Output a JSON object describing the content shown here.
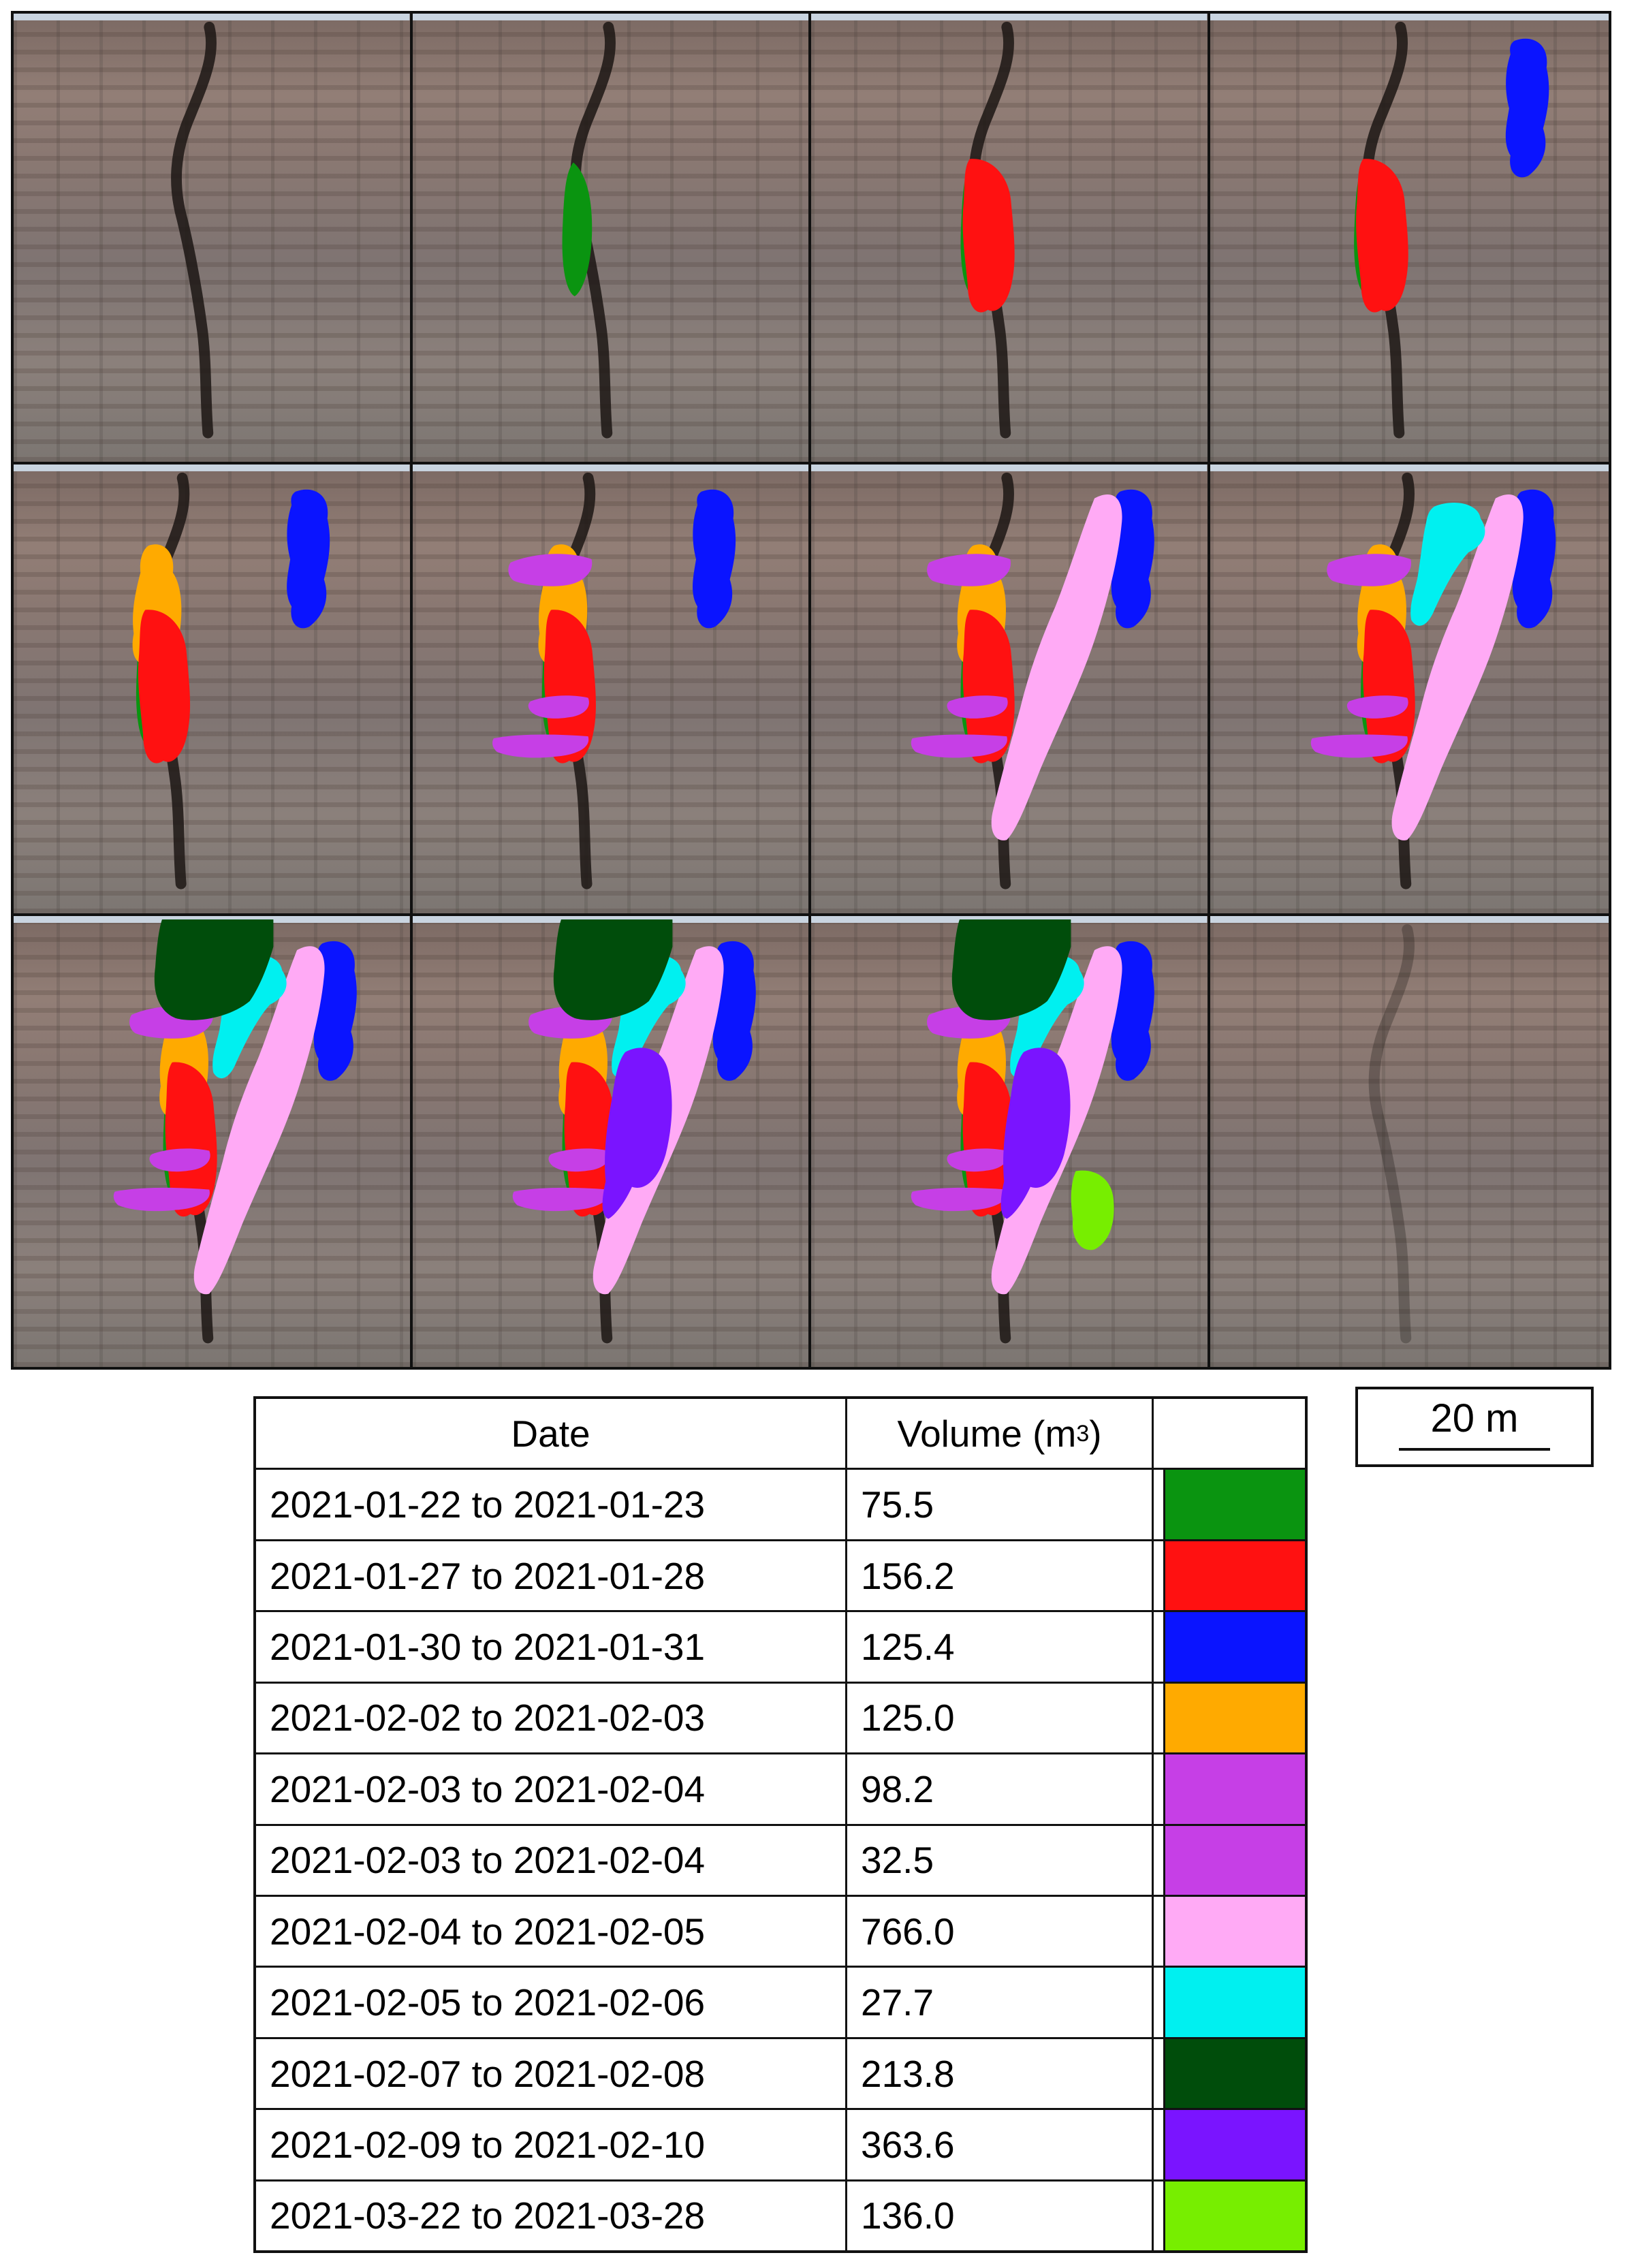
{
  "figure": {
    "panel_count": 12,
    "panels": [
      {
        "events": []
      },
      {
        "events": [
          0
        ]
      },
      {
        "events": [
          0,
          1
        ]
      },
      {
        "events": [
          0,
          1,
          2
        ]
      },
      {
        "events": [
          0,
          2,
          3,
          1
        ]
      },
      {
        "events": [
          0,
          2,
          3,
          1,
          4,
          5
        ]
      },
      {
        "events": [
          0,
          2,
          3,
          1,
          4,
          5,
          6
        ]
      },
      {
        "events": [
          0,
          2,
          3,
          1,
          4,
          5,
          6,
          7
        ]
      },
      {
        "events": [
          0,
          2,
          3,
          1,
          4,
          5,
          6,
          7,
          8
        ]
      },
      {
        "events": [
          0,
          2,
          3,
          1,
          4,
          5,
          6,
          7,
          8,
          9
        ]
      },
      {
        "events": [
          0,
          2,
          3,
          1,
          4,
          5,
          6,
          7,
          8,
          9,
          10
        ]
      },
      {
        "events": []
      }
    ]
  },
  "scale_bar": {
    "label": "20 m"
  },
  "legend": {
    "headers": {
      "date": "Date",
      "volume": "Volume (m",
      "volume_sup": "3",
      "volume_close": ")"
    },
    "rows": [
      {
        "date": "2021-01-22 to 2021-01-23",
        "volume": "75.5",
        "color": "#0a9410"
      },
      {
        "date": "2021-01-27 to 2021-01-28",
        "volume": "156.2",
        "color": "#ff1111"
      },
      {
        "date": "2021-01-30 to 2021-01-31",
        "volume": "125.4",
        "color": "#0a14ff"
      },
      {
        "date": "2021-02-02 to 2021-02-03",
        "volume": "125.0",
        "color": "#ffaa00"
      },
      {
        "date": "2021-02-03 to 2021-02-04",
        "volume": "98.2",
        "color": "#c63fe6"
      },
      {
        "date": "2021-02-03 to 2021-02-04",
        "volume": "32.5",
        "color": "#c63fe6"
      },
      {
        "date": "2021-02-04 to 2021-02-05",
        "volume": "766.0",
        "color": "#ffaaf5"
      },
      {
        "date": "2021-02-05 to 2021-02-06",
        "volume": "27.7",
        "color": "#00f0f0"
      },
      {
        "date": "2021-02-07 to 2021-02-08",
        "volume": "213.8",
        "color": "#004d0b"
      },
      {
        "date": "2021-02-09 to 2021-02-10",
        "volume": "363.6",
        "color": "#7a14ff"
      },
      {
        "date": "2021-03-22 to 2021-03-28",
        "volume": "136.0",
        "color": "#77ee00"
      }
    ]
  }
}
